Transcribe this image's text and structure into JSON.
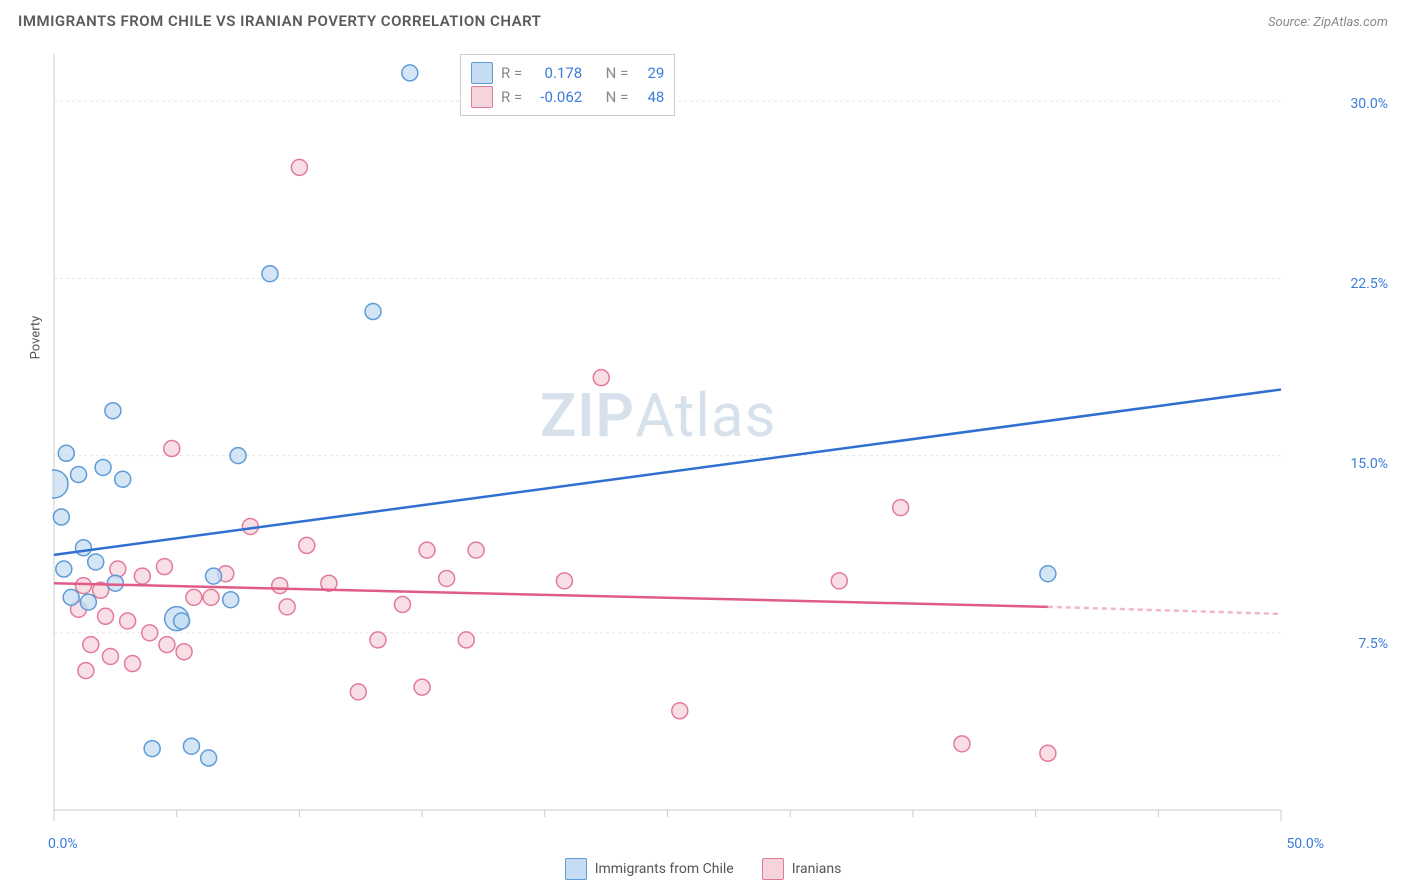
{
  "title": "IMMIGRANTS FROM CHILE VS IRANIAN POVERTY CORRELATION CHART",
  "source": "Source: ZipAtlas.com",
  "ylabel": "Poverty",
  "watermark_a": "ZIP",
  "watermark_b": "Atlas",
  "chart": {
    "type": "scatter",
    "background_color": "#ffffff",
    "axis_color": "#cccccc",
    "grid_color": "#e6e6e6",
    "tick_color": "#cccccc",
    "ylabel_color": "#555555",
    "tick_label_color": "#3b7dd8",
    "xlim": [
      0,
      50
    ],
    "ylim": [
      0,
      32
    ],
    "xticks_major": [
      0,
      50
    ],
    "xticks_minor": [
      5,
      10,
      15,
      20,
      25,
      30,
      35,
      40,
      45
    ],
    "yticks_major": [
      7.5,
      15.0,
      22.5,
      30.0
    ],
    "ytick_labels": [
      "7.5%",
      "15.0%",
      "22.5%",
      "30.0%"
    ],
    "xtick_labels": [
      "0.0%",
      "50.0%"
    ],
    "marker_radius": 8,
    "marker_stroke_width": 1.5,
    "trend_line_width": 2.5,
    "series": [
      {
        "key": "chile",
        "label": "Immigrants from Chile",
        "fill_color": "#c6dcf2",
        "stroke_color": "#5e9bd8",
        "trend_color": "#2f6fd0",
        "R": "0.178",
        "N": "29",
        "trend": {
          "x1": 0,
          "y1": 10.8,
          "x2": 50,
          "y2": 17.8
        },
        "points": [
          {
            "x": 14.5,
            "y": 31.2,
            "r": 8
          },
          {
            "x": 8.8,
            "y": 22.7,
            "r": 8
          },
          {
            "x": 13.0,
            "y": 21.1,
            "r": 8
          },
          {
            "x": 7.5,
            "y": 15.0,
            "r": 8
          },
          {
            "x": 2.4,
            "y": 16.9,
            "r": 8
          },
          {
            "x": 0.5,
            "y": 15.1,
            "r": 8
          },
          {
            "x": 0.0,
            "y": 13.8,
            "r": 14
          },
          {
            "x": 1.0,
            "y": 14.2,
            "r": 8
          },
          {
            "x": 2.0,
            "y": 14.5,
            "r": 8
          },
          {
            "x": 2.8,
            "y": 14.0,
            "r": 8
          },
          {
            "x": 0.3,
            "y": 12.4,
            "r": 8
          },
          {
            "x": 1.2,
            "y": 11.1,
            "r": 8
          },
          {
            "x": 0.4,
            "y": 10.2,
            "r": 8
          },
          {
            "x": 1.7,
            "y": 10.5,
            "r": 8
          },
          {
            "x": 2.5,
            "y": 9.6,
            "r": 8
          },
          {
            "x": 0.7,
            "y": 9.0,
            "r": 8
          },
          {
            "x": 1.4,
            "y": 8.8,
            "r": 8
          },
          {
            "x": 6.5,
            "y": 9.9,
            "r": 8
          },
          {
            "x": 7.2,
            "y": 8.9,
            "r": 8
          },
          {
            "x": 5.0,
            "y": 8.1,
            "r": 12
          },
          {
            "x": 5.2,
            "y": 8.0,
            "r": 8
          },
          {
            "x": 4.0,
            "y": 2.6,
            "r": 8
          },
          {
            "x": 5.6,
            "y": 2.7,
            "r": 8
          },
          {
            "x": 6.3,
            "y": 2.2,
            "r": 8
          },
          {
            "x": 40.5,
            "y": 10.0,
            "r": 8
          }
        ]
      },
      {
        "key": "iranians",
        "label": "Iranians",
        "fill_color": "#f6d4dc",
        "stroke_color": "#e37a9a",
        "trend_color": "#e05c86",
        "trend_extrap_color": "#f1b7c6",
        "R": "-0.062",
        "N": "48",
        "trend": {
          "x1": 0,
          "y1": 9.6,
          "x2": 40.5,
          "y2": 8.6
        },
        "trend_extrap": {
          "x1": 40.5,
          "y1": 8.6,
          "x2": 50,
          "y2": 8.3
        },
        "points": [
          {
            "x": 10.0,
            "y": 27.2,
            "r": 8
          },
          {
            "x": 22.3,
            "y": 18.3,
            "r": 8
          },
          {
            "x": 4.8,
            "y": 15.3,
            "r": 8
          },
          {
            "x": 8.0,
            "y": 12.0,
            "r": 8
          },
          {
            "x": 10.3,
            "y": 11.2,
            "r": 8
          },
          {
            "x": 15.2,
            "y": 11.0,
            "r": 8
          },
          {
            "x": 17.2,
            "y": 11.0,
            "r": 8
          },
          {
            "x": 16.0,
            "y": 9.8,
            "r": 8
          },
          {
            "x": 14.2,
            "y": 8.7,
            "r": 8
          },
          {
            "x": 12.4,
            "y": 5.0,
            "r": 8
          },
          {
            "x": 15.0,
            "y": 5.2,
            "r": 8
          },
          {
            "x": 13.2,
            "y": 7.2,
            "r": 8
          },
          {
            "x": 11.2,
            "y": 9.6,
            "r": 8
          },
          {
            "x": 9.2,
            "y": 9.5,
            "r": 8
          },
          {
            "x": 9.5,
            "y": 8.6,
            "r": 8
          },
          {
            "x": 7.0,
            "y": 10.0,
            "r": 8
          },
          {
            "x": 6.4,
            "y": 9.0,
            "r": 8
          },
          {
            "x": 5.7,
            "y": 9.0,
            "r": 8
          },
          {
            "x": 4.5,
            "y": 10.3,
            "r": 8
          },
          {
            "x": 3.6,
            "y": 9.9,
            "r": 8
          },
          {
            "x": 2.6,
            "y": 10.2,
            "r": 8
          },
          {
            "x": 1.9,
            "y": 9.3,
            "r": 8
          },
          {
            "x": 1.2,
            "y": 9.5,
            "r": 8
          },
          {
            "x": 1.0,
            "y": 8.5,
            "r": 8
          },
          {
            "x": 2.1,
            "y": 8.2,
            "r": 8
          },
          {
            "x": 3.0,
            "y": 8.0,
            "r": 8
          },
          {
            "x": 3.9,
            "y": 7.5,
            "r": 8
          },
          {
            "x": 4.6,
            "y": 7.0,
            "r": 8
          },
          {
            "x": 5.3,
            "y": 6.7,
            "r": 8
          },
          {
            "x": 3.2,
            "y": 6.2,
            "r": 8
          },
          {
            "x": 2.3,
            "y": 6.5,
            "r": 8
          },
          {
            "x": 1.5,
            "y": 7.0,
            "r": 8
          },
          {
            "x": 1.3,
            "y": 5.9,
            "r": 8
          },
          {
            "x": 16.8,
            "y": 7.2,
            "r": 8
          },
          {
            "x": 20.8,
            "y": 9.7,
            "r": 8
          },
          {
            "x": 25.5,
            "y": 4.2,
            "r": 8
          },
          {
            "x": 32.0,
            "y": 9.7,
            "r": 8
          },
          {
            "x": 34.5,
            "y": 12.8,
            "r": 8
          },
          {
            "x": 37.0,
            "y": 2.8,
            "r": 8
          },
          {
            "x": 40.5,
            "y": 2.4,
            "r": 8
          }
        ]
      }
    ]
  },
  "legend_stats": {
    "r_label": "R =",
    "n_label": "N ="
  }
}
